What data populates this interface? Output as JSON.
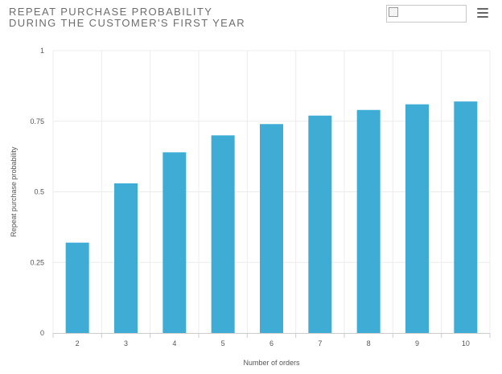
{
  "header": {
    "title_line1": "REPEAT PURCHASE PROBABILITY",
    "title_line2": "DURING THE CUSTOMER'S FIRST YEAR"
  },
  "colors": {
    "bar": "#3eacd4",
    "grid": "#ececec",
    "axis": "#cccccc"
  },
  "icons": {
    "menu": "hamburger-menu-icon",
    "logo": "broken-image-icon"
  },
  "chart_data": {
    "type": "bar",
    "categories": [
      "2",
      "3",
      "4",
      "5",
      "6",
      "7",
      "8",
      "9",
      "10"
    ],
    "values": [
      0.32,
      0.53,
      0.64,
      0.7,
      0.74,
      0.77,
      0.79,
      0.81,
      0.82
    ],
    "xlabel": "Number of orders",
    "ylabel": "Repeat purchase probability",
    "ylim": [
      0,
      1
    ],
    "yticks": [
      0,
      0.25,
      0.5,
      0.75,
      1
    ],
    "ytick_labels": [
      "0",
      "0.25",
      "0.5",
      "0.75",
      "1"
    ],
    "grid": true,
    "legend": "none"
  }
}
